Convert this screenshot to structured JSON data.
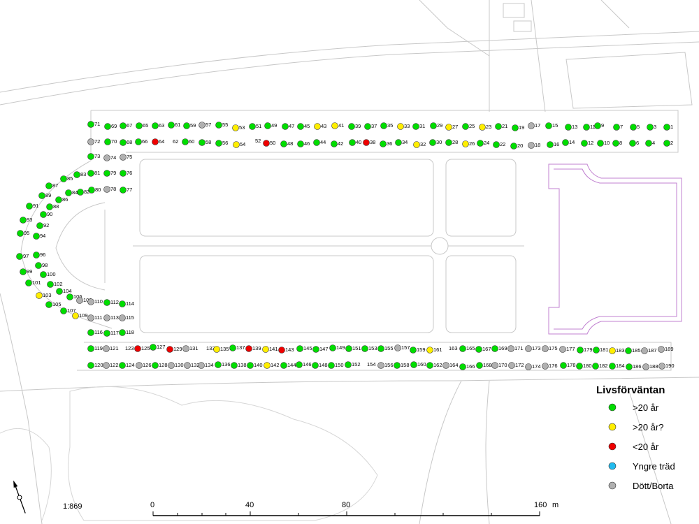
{
  "colors": {
    "green": "#00dd00",
    "yellow": "#ffee00",
    "red": "#ee0000",
    "cyan": "#22bbee",
    "gray": "#b0b0b0",
    "basemap_line": "#c8c8c8",
    "purple_line": "#b070c0"
  },
  "legend": {
    "title": "Livsförväntan",
    "items": [
      {
        "label": ">20 år",
        "status": "green"
      },
      {
        "label": ">20 år?",
        "status": "yellow"
      },
      {
        "label": "<20 år",
        "status": "red"
      },
      {
        "label": "Yngre träd",
        "status": "cyan"
      },
      {
        "label": "Dött/Borta",
        "status": "gray"
      }
    ]
  },
  "scale_text": "1:869",
  "scalebar": {
    "labels": [
      "0",
      "40",
      "80",
      "160"
    ],
    "unit": "m"
  },
  "north_arrow_icon": "north-arrow-icon",
  "trees": [
    {
      "id": "1",
      "status": "green"
    },
    {
      "id": "2",
      "status": "green"
    },
    {
      "id": "3",
      "status": "green"
    },
    {
      "id": "4",
      "status": "green"
    },
    {
      "id": "5",
      "status": "green"
    },
    {
      "id": "6",
      "status": "green"
    },
    {
      "id": "7",
      "status": "green"
    },
    {
      "id": "8",
      "status": "green"
    },
    {
      "id": "9",
      "status": "green"
    },
    {
      "id": "10",
      "status": "green"
    },
    {
      "id": "11",
      "status": "green"
    },
    {
      "id": "12",
      "status": "green"
    },
    {
      "id": "13",
      "status": "green"
    },
    {
      "id": "14",
      "status": "green"
    },
    {
      "id": "15",
      "status": "green"
    },
    {
      "id": "16",
      "status": "green"
    },
    {
      "id": "17",
      "status": "gray"
    },
    {
      "id": "18",
      "status": "gray"
    },
    {
      "id": "19",
      "status": "green"
    },
    {
      "id": "20",
      "status": "green"
    },
    {
      "id": "21",
      "status": "green"
    },
    {
      "id": "22",
      "status": "green"
    },
    {
      "id": "23",
      "status": "yellow"
    },
    {
      "id": "24",
      "status": "green"
    },
    {
      "id": "25",
      "status": "green"
    },
    {
      "id": "26",
      "status": "yellow"
    },
    {
      "id": "27",
      "status": "yellow"
    },
    {
      "id": "28",
      "status": "green"
    },
    {
      "id": "29",
      "status": "green"
    },
    {
      "id": "30",
      "status": "green"
    },
    {
      "id": "31",
      "status": "green"
    },
    {
      "id": "32",
      "status": "yellow"
    },
    {
      "id": "33",
      "status": "yellow"
    },
    {
      "id": "34",
      "status": "green"
    },
    {
      "id": "35",
      "status": "green"
    },
    {
      "id": "36",
      "status": "green"
    },
    {
      "id": "37",
      "status": "green"
    },
    {
      "id": "38",
      "status": "red"
    },
    {
      "id": "39",
      "status": "green"
    },
    {
      "id": "40",
      "status": "green"
    },
    {
      "id": "41",
      "status": "yellow"
    },
    {
      "id": "42",
      "status": "green"
    },
    {
      "id": "43",
      "status": "yellow"
    },
    {
      "id": "44",
      "status": "green"
    },
    {
      "id": "45",
      "status": "green"
    },
    {
      "id": "46",
      "status": "green"
    },
    {
      "id": "47",
      "status": "green"
    },
    {
      "id": "48",
      "status": "green"
    },
    {
      "id": "49",
      "status": "green"
    },
    {
      "id": "50",
      "status": "red"
    },
    {
      "id": "51",
      "status": "green"
    },
    {
      "id": "52",
      "status": "none"
    },
    {
      "id": "53",
      "status": "yellow"
    },
    {
      "id": "54",
      "status": "yellow"
    },
    {
      "id": "55",
      "status": "green"
    },
    {
      "id": "56",
      "status": "green"
    },
    {
      "id": "57",
      "status": "gray"
    },
    {
      "id": "58",
      "status": "green"
    },
    {
      "id": "59",
      "status": "green"
    },
    {
      "id": "60",
      "status": "green"
    },
    {
      "id": "61",
      "status": "green"
    },
    {
      "id": "62",
      "status": "none"
    },
    {
      "id": "63",
      "status": "green"
    },
    {
      "id": "64",
      "status": "red"
    },
    {
      "id": "65",
      "status": "green"
    },
    {
      "id": "66",
      "status": "green"
    },
    {
      "id": "67",
      "status": "green"
    },
    {
      "id": "68",
      "status": "green"
    },
    {
      "id": "69",
      "status": "green"
    },
    {
      "id": "70",
      "status": "green"
    },
    {
      "id": "71",
      "status": "green"
    },
    {
      "id": "72",
      "status": "gray"
    },
    {
      "id": "73",
      "status": "green"
    },
    {
      "id": "74",
      "status": "gray"
    },
    {
      "id": "75",
      "status": "gray"
    },
    {
      "id": "76",
      "status": "green"
    },
    {
      "id": "77",
      "status": "green"
    },
    {
      "id": "78",
      "status": "gray"
    },
    {
      "id": "79",
      "status": "green"
    },
    {
      "id": "80",
      "status": "green"
    },
    {
      "id": "81",
      "status": "green"
    },
    {
      "id": "82",
      "status": "green"
    },
    {
      "id": "83",
      "status": "green"
    },
    {
      "id": "84",
      "status": "green"
    },
    {
      "id": "85",
      "status": "green"
    },
    {
      "id": "86",
      "status": "green"
    },
    {
      "id": "87",
      "status": "green"
    },
    {
      "id": "88",
      "status": "green"
    },
    {
      "id": "89",
      "status": "green"
    },
    {
      "id": "90",
      "status": "green"
    },
    {
      "id": "91",
      "status": "green"
    },
    {
      "id": "92",
      "status": "green"
    },
    {
      "id": "93",
      "status": "green"
    },
    {
      "id": "94",
      "status": "green"
    },
    {
      "id": "95",
      "status": "green"
    },
    {
      "id": "96",
      "status": "green"
    },
    {
      "id": "97",
      "status": "green"
    },
    {
      "id": "98",
      "status": "green"
    },
    {
      "id": "99",
      "status": "green"
    },
    {
      "id": "100",
      "status": "green"
    },
    {
      "id": "101",
      "status": "green"
    },
    {
      "id": "102",
      "status": "green"
    },
    {
      "id": "103",
      "status": "yellow"
    },
    {
      "id": "104",
      "status": "green"
    },
    {
      "id": "105",
      "status": "green"
    },
    {
      "id": "106",
      "status": "green"
    },
    {
      "id": "107",
      "status": "green"
    },
    {
      "id": "108",
      "status": "gray"
    },
    {
      "id": "109",
      "status": "yellow"
    },
    {
      "id": "110",
      "status": "gray"
    },
    {
      "id": "111",
      "status": "gray"
    },
    {
      "id": "112",
      "status": "green"
    },
    {
      "id": "113",
      "status": "gray"
    },
    {
      "id": "114",
      "status": "green"
    },
    {
      "id": "115",
      "status": "gray"
    },
    {
      "id": "116",
      "status": "green"
    },
    {
      "id": "117",
      "status": "green"
    },
    {
      "id": "118",
      "status": "green"
    },
    {
      "id": "119",
      "status": "green"
    },
    {
      "id": "120",
      "status": "green"
    },
    {
      "id": "121",
      "status": "gray"
    },
    {
      "id": "122",
      "status": "gray"
    },
    {
      "id": "123",
      "status": "none"
    },
    {
      "id": "124",
      "status": "green"
    },
    {
      "id": "125",
      "status": "red"
    },
    {
      "id": "126",
      "status": "gray"
    },
    {
      "id": "127",
      "status": "green"
    },
    {
      "id": "128",
      "status": "green"
    },
    {
      "id": "129",
      "status": "red"
    },
    {
      "id": "130",
      "status": "gray"
    },
    {
      "id": "131",
      "status": "gray"
    },
    {
      "id": "132",
      "status": "gray"
    },
    {
      "id": "133",
      "status": "none"
    },
    {
      "id": "134",
      "status": "gray"
    },
    {
      "id": "135",
      "status": "yellow"
    },
    {
      "id": "136",
      "status": "green"
    },
    {
      "id": "137",
      "status": "green"
    },
    {
      "id": "138",
      "status": "green"
    },
    {
      "id": "139",
      "status": "red"
    },
    {
      "id": "140",
      "status": "green"
    },
    {
      "id": "141",
      "status": "yellow"
    },
    {
      "id": "142",
      "status": "yellow"
    },
    {
      "id": "143",
      "status": "red"
    },
    {
      "id": "144",
      "status": "green"
    },
    {
      "id": "145",
      "status": "green"
    },
    {
      "id": "146",
      "status": "green"
    },
    {
      "id": "147",
      "status": "green"
    },
    {
      "id": "148",
      "status": "green"
    },
    {
      "id": "149",
      "status": "green"
    },
    {
      "id": "150",
      "status": "green"
    },
    {
      "id": "151",
      "status": "green"
    },
    {
      "id": "152",
      "status": "green"
    },
    {
      "id": "153",
      "status": "green"
    },
    {
      "id": "154",
      "status": "none"
    },
    {
      "id": "155",
      "status": "green"
    },
    {
      "id": "156",
      "status": "gray"
    },
    {
      "id": "157",
      "status": "gray"
    },
    {
      "id": "158",
      "status": "green"
    },
    {
      "id": "159",
      "status": "green"
    },
    {
      "id": "160",
      "status": "green"
    },
    {
      "id": "161",
      "status": "yellow"
    },
    {
      "id": "162",
      "status": "green"
    },
    {
      "id": "163",
      "status": "none"
    },
    {
      "id": "164",
      "status": "gray"
    },
    {
      "id": "165",
      "status": "green"
    },
    {
      "id": "166",
      "status": "green"
    },
    {
      "id": "167",
      "status": "green"
    },
    {
      "id": "168",
      "status": "green"
    },
    {
      "id": "169",
      "status": "green"
    },
    {
      "id": "170",
      "status": "gray"
    },
    {
      "id": "171",
      "status": "gray"
    },
    {
      "id": "172",
      "status": "gray"
    },
    {
      "id": "173",
      "status": "gray"
    },
    {
      "id": "174",
      "status": "gray"
    },
    {
      "id": "175",
      "status": "gray"
    },
    {
      "id": "176",
      "status": "gray"
    },
    {
      "id": "177",
      "status": "gray"
    },
    {
      "id": "178",
      "status": "green"
    },
    {
      "id": "179",
      "status": "green"
    },
    {
      "id": "180",
      "status": "green"
    },
    {
      "id": "181",
      "status": "green"
    },
    {
      "id": "182",
      "status": "green"
    },
    {
      "id": "183",
      "status": "yellow"
    },
    {
      "id": "184",
      "status": "green"
    },
    {
      "id": "185",
      "status": "green"
    },
    {
      "id": "186",
      "status": "green"
    },
    {
      "id": "187",
      "status": "gray"
    },
    {
      "id": "188",
      "status": "gray"
    },
    {
      "id": "189",
      "status": "gray"
    },
    {
      "id": "190",
      "status": "gray"
    }
  ]
}
